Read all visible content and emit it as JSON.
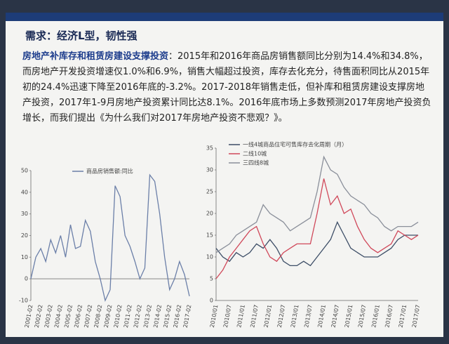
{
  "title": "需求：经济L型，韧性强",
  "paragraph": {
    "lead": "房地产补库存和租赁房建设支撑投资",
    "body": "：2015年和2016年商品房销售额同比分别为14.4%和34.8%，而房地产开发投资增速仅1.0%和6.9%，销售大幅超过投资，库存去化充分，待售面积同比从2015年初的24.4%迅速下降至2016年底的-3.2%。2017-2018年销售走低，但补库和租赁房建设支撑房地产投资，2017年1-9月房地产投资累计同比达8.1%。2016年底市场上多数预测2017年房地产投资负增长，而我们提出《为什么我们对2017年房地产投资不悲观？》。"
  },
  "chart_data": [
    {
      "type": "line",
      "categories": [
        "2001-02",
        null,
        "2002-02",
        null,
        "2003-02",
        null,
        "2004-02",
        null,
        "2005-02",
        null,
        "2006-02",
        null,
        "2007-02",
        null,
        "2008-02",
        null,
        "2009-02",
        null,
        "2010-02",
        null,
        "2011-02",
        null,
        "2012-02",
        null,
        "2013-02",
        null,
        "2014-02",
        null,
        "2015-02",
        null,
        "2016-02",
        null,
        "2017-02"
      ],
      "series": [
        {
          "name": "商品房销售额:同比",
          "color": "#6b7fa8",
          "values": [
            0,
            10,
            14,
            8,
            18,
            12,
            20,
            10,
            25,
            14,
            15,
            27,
            22,
            8,
            0,
            -10,
            -5,
            43,
            38,
            20,
            15,
            8,
            0,
            5,
            48,
            45,
            30,
            10,
            -5,
            0,
            8,
            2,
            -8
          ]
        }
      ],
      "ylim": [
        -10,
        50
      ],
      "yticks": [
        -10,
        0,
        10,
        20,
        30,
        40,
        50
      ]
    },
    {
      "type": "line",
      "categories": [
        "2010/01",
        null,
        "2010/07",
        null,
        "2011/01",
        null,
        "2011/07",
        null,
        "2012/01",
        null,
        "2012/07",
        null,
        "2013/01",
        null,
        "2013/07",
        null,
        "2014/01",
        null,
        "2014/07",
        null,
        "2015/01",
        null,
        "2015/07",
        null,
        "2016/01",
        null,
        "2016/07",
        null,
        "2017/01",
        null,
        "2017/07"
      ],
      "series": [
        {
          "name": "一线4城商品住宅可售库存去化周期（月）",
          "color": "#3c4d66",
          "values": [
            12,
            10,
            9,
            11,
            10,
            11,
            13,
            12,
            14,
            12,
            9,
            8,
            8,
            9,
            8,
            10,
            12,
            14,
            18,
            15,
            12,
            11,
            10,
            10,
            10,
            11,
            12,
            14,
            15,
            15,
            15
          ]
        },
        {
          "name": "二线10城",
          "color": "#d0485a",
          "values": [
            5,
            7,
            10,
            12,
            14,
            16,
            17,
            13,
            10,
            9,
            11,
            12,
            13,
            13,
            13,
            20,
            28,
            22,
            24,
            20,
            21,
            17,
            14,
            12,
            11,
            12,
            13,
            16,
            15,
            14,
            15
          ]
        },
        {
          "name": "三四线8城",
          "color": "#8a8f9a",
          "values": [
            11,
            12,
            13,
            15,
            16,
            17,
            18,
            22,
            20,
            19,
            18,
            16,
            17,
            18,
            19,
            25,
            33,
            30,
            29,
            26,
            24,
            23,
            22,
            20,
            19,
            17,
            16,
            17,
            17,
            17,
            18
          ]
        }
      ],
      "ylim": [
        0,
        35
      ],
      "yticks": [
        0,
        5,
        10,
        15,
        20,
        25,
        30,
        35
      ]
    }
  ]
}
